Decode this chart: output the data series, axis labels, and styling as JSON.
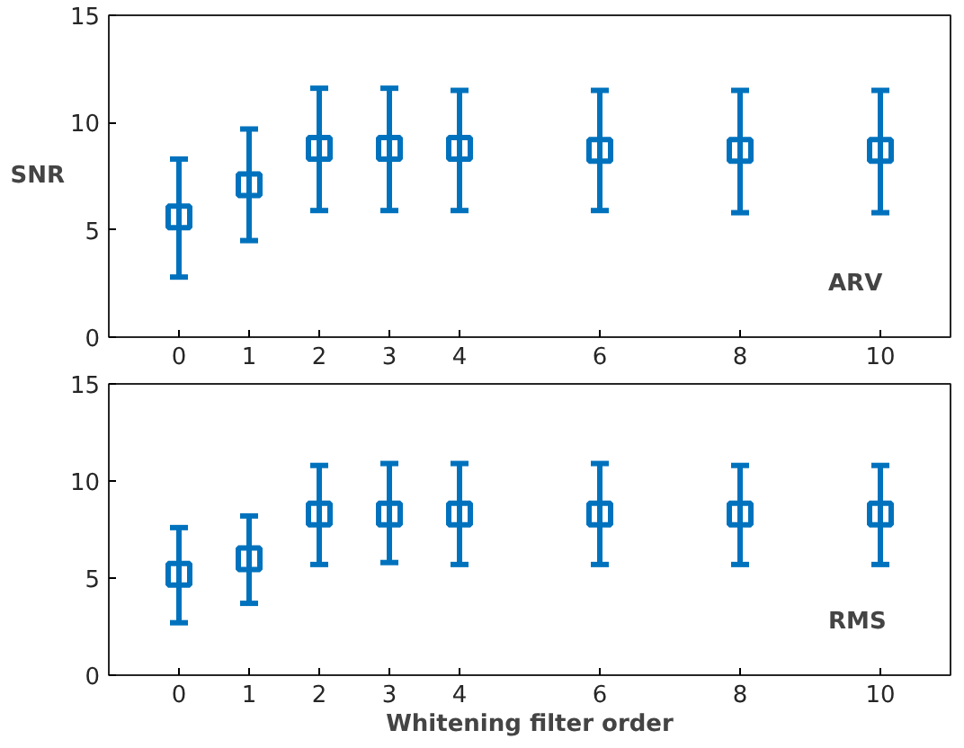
{
  "chart_data": [
    {
      "type": "scatter",
      "ylabel": "SNR",
      "x": [
        0,
        1,
        2,
        3,
        4,
        6,
        8,
        10
      ],
      "xlim": [
        -1,
        11
      ],
      "xticks": [
        0,
        1,
        2,
        3,
        4,
        6,
        8,
        10
      ],
      "ylim": [
        0,
        15
      ],
      "yticks": [
        0,
        5,
        10,
        15
      ],
      "grid": false,
      "marker": "square",
      "line_style": "none",
      "color": "#0072bd",
      "values": [
        5.6,
        7.1,
        8.8,
        8.8,
        8.8,
        8.7,
        8.7,
        8.7
      ],
      "errors": [
        [
          2.8,
          8.3
        ],
        [
          4.5,
          9.7
        ],
        [
          5.9,
          11.6
        ],
        [
          5.9,
          11.6
        ],
        [
          5.9,
          11.5
        ],
        [
          5.9,
          11.5
        ],
        [
          5.8,
          11.5
        ],
        [
          5.8,
          11.5
        ]
      ],
      "annotations": [
        "ARV"
      ]
    },
    {
      "type": "scatter",
      "xlabel": "Whitening filter order",
      "x": [
        0,
        1,
        2,
        3,
        4,
        6,
        8,
        10
      ],
      "xlim": [
        -1,
        11
      ],
      "xticks": [
        0,
        1,
        2,
        3,
        4,
        6,
        8,
        10
      ],
      "ylim": [
        0,
        15
      ],
      "yticks": [
        0,
        5,
        10,
        15
      ],
      "grid": false,
      "marker": "square",
      "line_style": "none",
      "color": "#0072bd",
      "values": [
        5.2,
        6.0,
        8.3,
        8.3,
        8.3,
        8.3,
        8.3,
        8.3
      ],
      "errors": [
        [
          2.7,
          7.6
        ],
        [
          3.7,
          8.2
        ],
        [
          5.7,
          10.8
        ],
        [
          5.8,
          10.9
        ],
        [
          5.7,
          10.9
        ],
        [
          5.7,
          10.9
        ],
        [
          5.7,
          10.8
        ],
        [
          5.7,
          10.8
        ]
      ],
      "annotations": [
        "RMS"
      ]
    }
  ]
}
